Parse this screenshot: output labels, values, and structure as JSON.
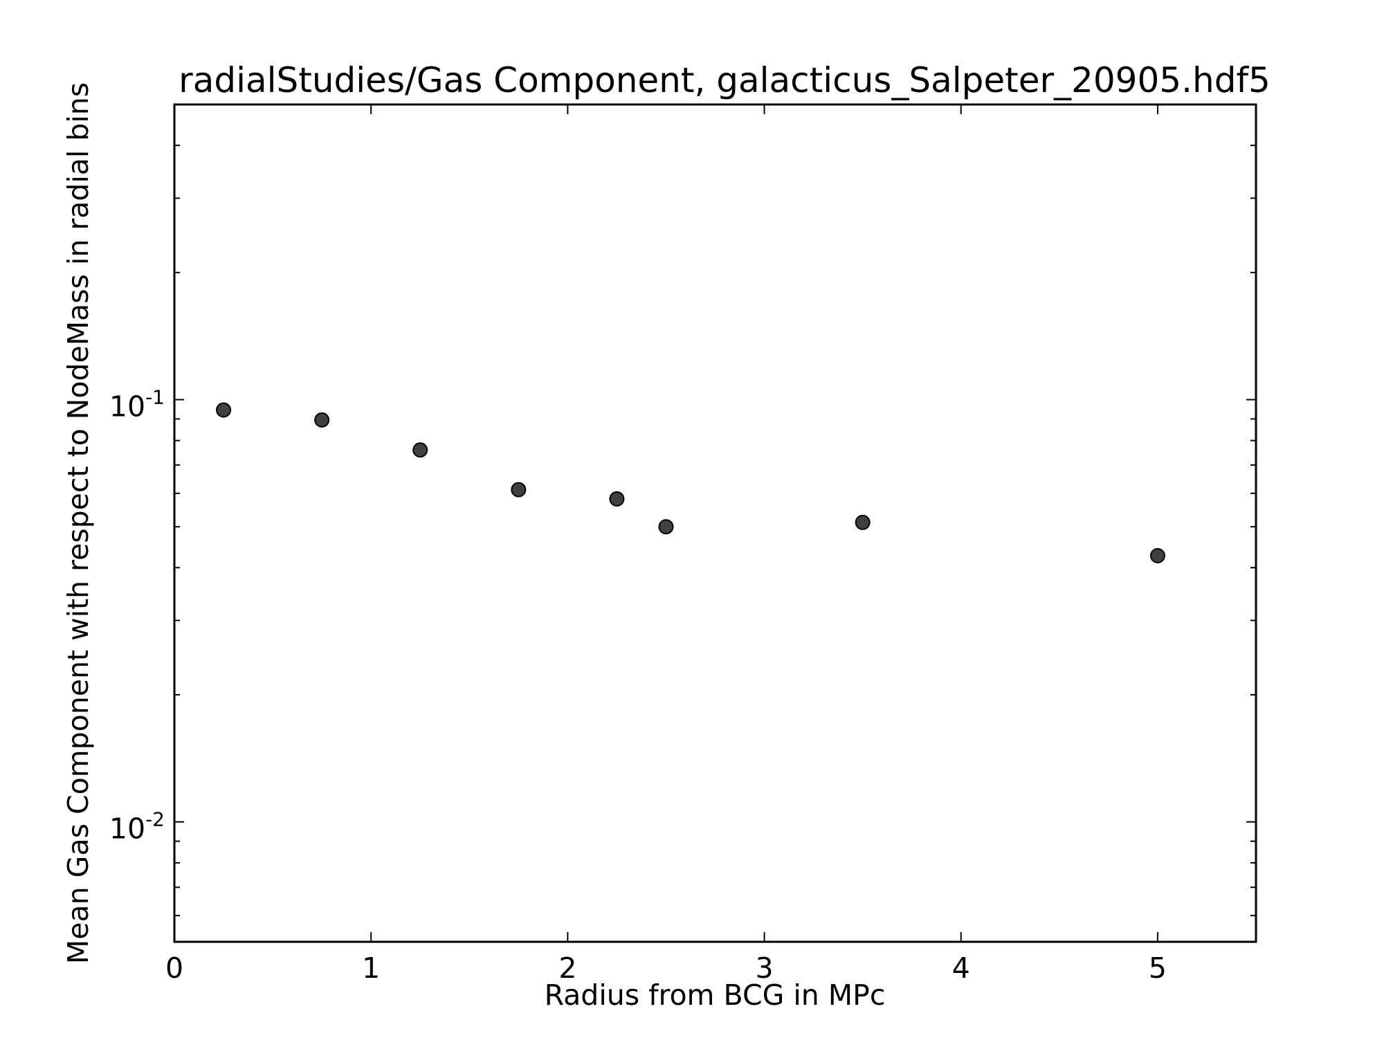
{
  "chart_data": {
    "type": "scatter",
    "title": "radialStudies/Gas Component, galacticus_Salpeter_20905.hdf5",
    "xlabel": "Radius from BCG in MPc",
    "ylabel": "Mean Gas Component with respect to NodeMass in radial bins",
    "xlim": [
      0,
      5.5
    ],
    "ylim": [
      0.0052,
      0.5
    ],
    "yscale": "log",
    "grid": false,
    "legend": "none",
    "x_ticks": [
      {
        "value": 0,
        "label": "0"
      },
      {
        "value": 1,
        "label": "1"
      },
      {
        "value": 2,
        "label": "2"
      },
      {
        "value": 3,
        "label": "3"
      },
      {
        "value": 4,
        "label": "4"
      },
      {
        "value": 5,
        "label": "5"
      }
    ],
    "y_ticks": [
      {
        "value": 0.1,
        "base": "10",
        "exp": "-1"
      },
      {
        "value": 0.01,
        "base": "10",
        "exp": "-2"
      }
    ],
    "marker_color": "#404040",
    "series": [
      {
        "x": [
          0.25,
          0.75,
          1.25,
          1.75,
          2.25,
          2.5,
          3.5,
          5.0
        ],
        "y": [
          0.0945,
          0.0895,
          0.076,
          0.0612,
          0.0582,
          0.05,
          0.0512,
          0.0427
        ]
      }
    ]
  }
}
